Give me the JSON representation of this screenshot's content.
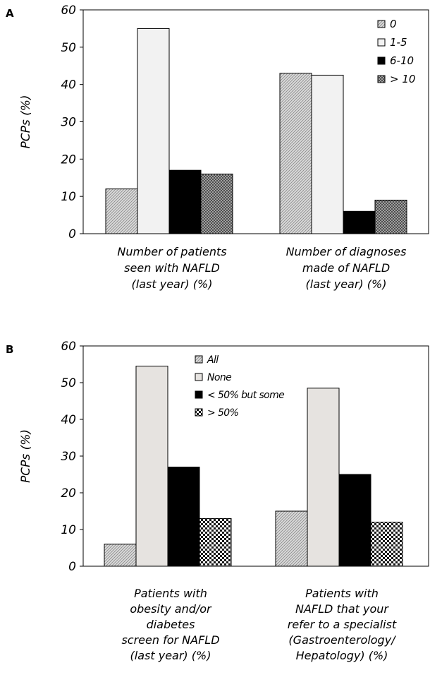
{
  "chart_data": [
    {
      "type": "bar",
      "panel_label": "A",
      "ylabel": "PCPs (%)",
      "ylim": [
        0,
        60
      ],
      "yticks": [
        "0",
        "10",
        "20",
        "30",
        "40",
        "50",
        "60"
      ],
      "categories": [
        [
          "Number of patients",
          "seen with NAFLD",
          "(last year) (%)"
        ],
        [
          "Number of diagnoses",
          "made of NAFLD",
          "(last year) (%)"
        ]
      ],
      "legend_position": "top-right",
      "series": [
        {
          "name": "0",
          "values": [
            12,
            43
          ],
          "color": "#cfcfcf",
          "pattern": "diagonal"
        },
        {
          "name": "1-5",
          "values": [
            55,
            42.5
          ],
          "color": "#f2f2f2",
          "pattern": "none"
        },
        {
          "name": "6-10",
          "values": [
            17,
            6
          ],
          "color": "#000000",
          "pattern": "none"
        },
        {
          "name": "> 10",
          "values": [
            16,
            9
          ],
          "color": "#8c8c8c",
          "pattern": "crosshatch"
        }
      ]
    },
    {
      "type": "bar",
      "panel_label": "B",
      "ylabel": "PCPs (%)",
      "ylim": [
        0,
        60
      ],
      "yticks": [
        "0",
        "10",
        "20",
        "30",
        "40",
        "50",
        "60"
      ],
      "categories": [
        [
          "Patients with",
          "obesity and/or",
          "diabetes",
          "screen for NAFLD",
          "(last year) (%)"
        ],
        [
          "Patients with",
          "NAFLD that your",
          "refer to a specialist",
          "(Gastroenterology/",
          "Hepatology) (%)"
        ]
      ],
      "legend_position": "top-center",
      "series": [
        {
          "name": "All",
          "values": [
            6,
            15
          ],
          "color": "#c9c9c9",
          "pattern": "diagonal"
        },
        {
          "name": "None",
          "values": [
            54.5,
            48.5
          ],
          "color": "#e6e3e0",
          "pattern": "none"
        },
        {
          "name": "< 50% but some",
          "values": [
            27,
            25
          ],
          "color": "#000000",
          "pattern": "none"
        },
        {
          "name": "> 50%",
          "values": [
            13,
            12
          ],
          "color": "#555555",
          "pattern": "checker"
        }
      ]
    }
  ]
}
